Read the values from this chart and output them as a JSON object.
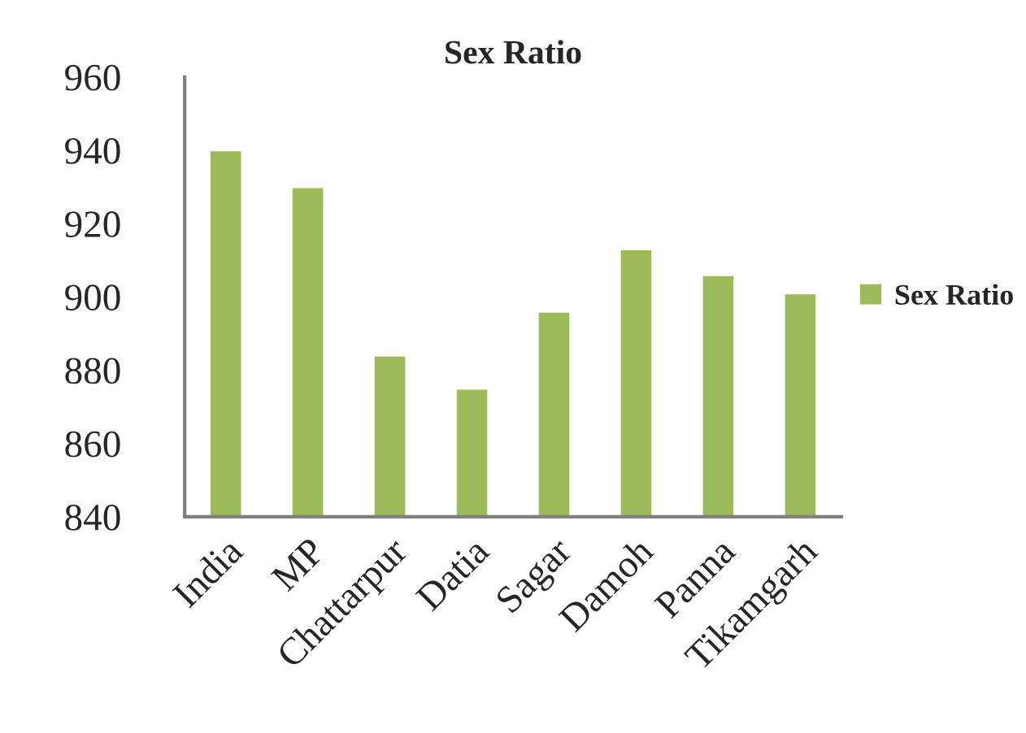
{
  "chart_data": {
    "type": "bar",
    "title": "Sex Ratio",
    "categories": [
      "India",
      "MP",
      "Chattarpur",
      "Datia",
      "Sagar",
      "Damoh",
      "Panna",
      "Tikamgarh"
    ],
    "series": [
      {
        "name": "Sex Ratio",
        "color": "#9bbb59",
        "values": [
          940,
          930,
          884,
          875,
          896,
          913,
          906,
          901
        ]
      }
    ],
    "ylim": [
      840,
      960
    ],
    "yticks": [
      840,
      860,
      880,
      900,
      920,
      940,
      960
    ],
    "grid": false,
    "legend": "right"
  }
}
